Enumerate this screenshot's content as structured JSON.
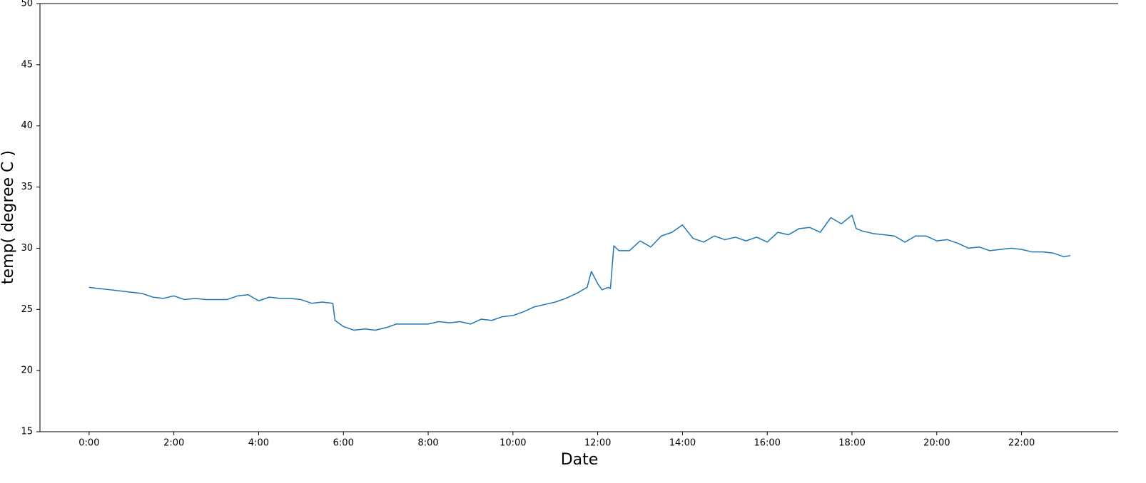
{
  "chart_data": {
    "type": "line",
    "x_label": "Date",
    "y_label": "temp( degree C )",
    "x": [
      0,
      0.25,
      0.5,
      0.75,
      1.0,
      1.25,
      1.5,
      1.75,
      2.0,
      2.25,
      2.5,
      2.75,
      3.0,
      3.25,
      3.5,
      3.75,
      4.0,
      4.25,
      4.5,
      4.75,
      5.0,
      5.25,
      5.5,
      5.75,
      5.8,
      6.0,
      6.25,
      6.5,
      6.75,
      7.0,
      7.25,
      7.5,
      7.75,
      8.0,
      8.25,
      8.5,
      8.75,
      9.0,
      9.25,
      9.5,
      9.75,
      10.0,
      10.25,
      10.5,
      10.75,
      11.0,
      11.25,
      11.5,
      11.75,
      11.85,
      12.0,
      12.1,
      12.25,
      12.3,
      12.38,
      12.5,
      12.75,
      13.0,
      13.25,
      13.5,
      13.75,
      14.0,
      14.25,
      14.5,
      14.75,
      15.0,
      15.25,
      15.5,
      15.75,
      16.0,
      16.25,
      16.5,
      16.75,
      17.0,
      17.25,
      17.5,
      17.75,
      18.0,
      18.1,
      18.25,
      18.5,
      18.75,
      19.0,
      19.25,
      19.5,
      19.75,
      20.0,
      20.25,
      20.5,
      20.75,
      21.0,
      21.25,
      21.5,
      21.75,
      22.0,
      22.25,
      22.5,
      22.75,
      23.0,
      23.15
    ],
    "series": [
      {
        "color": "#1f77b4",
        "values": [
          26.8,
          26.7,
          26.6,
          26.5,
          26.4,
          26.3,
          26.0,
          25.9,
          26.1,
          25.8,
          25.9,
          25.8,
          25.8,
          25.8,
          26.1,
          26.2,
          25.7,
          26.0,
          25.9,
          25.9,
          25.8,
          25.5,
          25.6,
          25.5,
          24.1,
          23.6,
          23.3,
          23.4,
          23.3,
          23.5,
          23.8,
          23.8,
          23.8,
          23.8,
          24.0,
          23.9,
          24.0,
          23.8,
          24.2,
          24.1,
          24.4,
          24.5,
          24.8,
          25.2,
          25.4,
          25.6,
          25.9,
          26.3,
          26.8,
          28.1,
          27.1,
          26.6,
          26.8,
          26.7,
          30.2,
          29.8,
          29.8,
          30.6,
          30.1,
          31.0,
          31.3,
          31.9,
          30.8,
          30.5,
          31.0,
          30.7,
          30.9,
          30.6,
          30.9,
          30.5,
          31.3,
          31.1,
          31.6,
          31.7,
          31.3,
          32.5,
          32.0,
          32.7,
          31.6,
          31.4,
          31.2,
          31.1,
          31.0,
          30.5,
          31.0,
          31.0,
          30.6,
          30.7,
          30.4,
          30.0,
          30.1,
          29.8,
          29.9,
          30.0,
          29.9,
          29.7,
          29.7,
          29.6,
          29.3,
          29.4
        ]
      }
    ],
    "xlim": [
      -1.16,
      24.28
    ],
    "xticks": [
      {
        "value": 0,
        "label": "0:00"
      },
      {
        "value": 2,
        "label": "2:00"
      },
      {
        "value": 4,
        "label": "4:00"
      },
      {
        "value": 6,
        "label": "6:00"
      },
      {
        "value": 8,
        "label": "8:00"
      },
      {
        "value": 10,
        "label": "10:00"
      },
      {
        "value": 12,
        "label": "12:00"
      },
      {
        "value": 14,
        "label": "14:00"
      },
      {
        "value": 16,
        "label": "16:00"
      },
      {
        "value": 18,
        "label": "18:00"
      },
      {
        "value": 20,
        "label": "20:00"
      },
      {
        "value": 22,
        "label": "22:00"
      }
    ],
    "ylim": [
      15,
      50
    ],
    "yticks": [
      15,
      20,
      25,
      30,
      35,
      40,
      45,
      50
    ],
    "grid": false
  }
}
